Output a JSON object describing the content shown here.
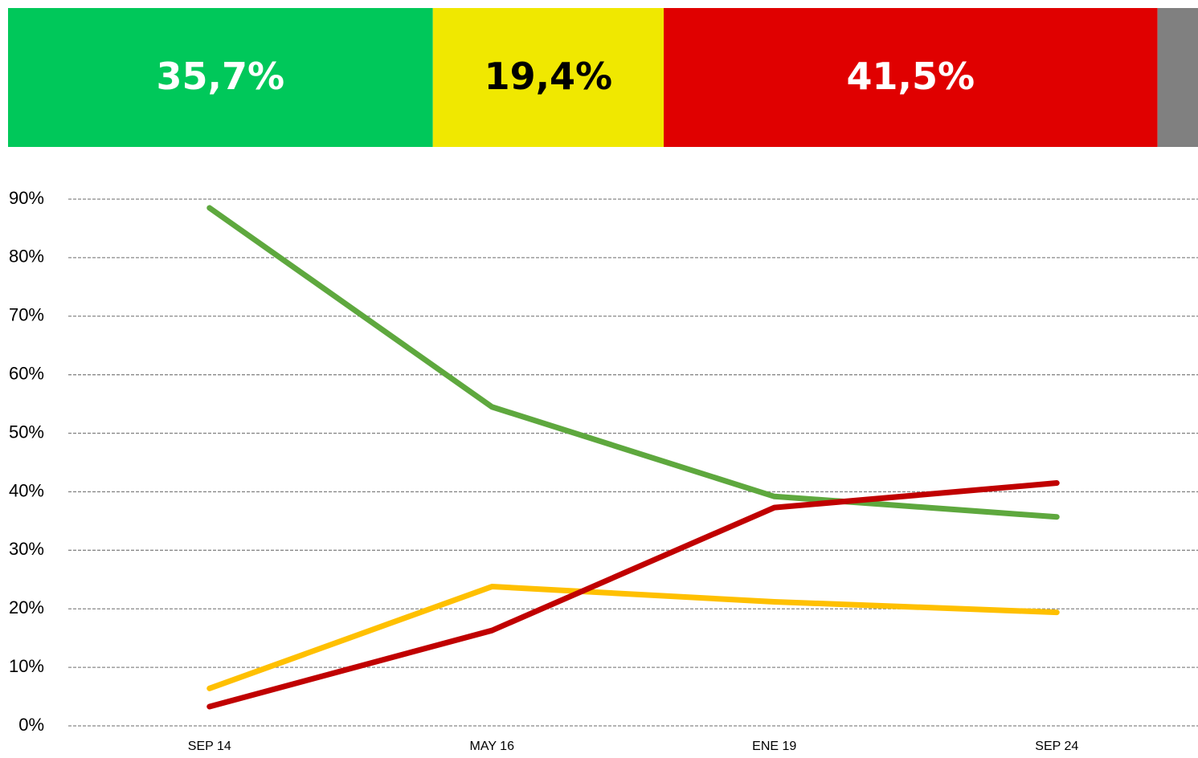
{
  "chart_data": [
    {
      "type": "stacked-bar",
      "series": [
        {
          "color": "#00c85a",
          "values": [
            35.7
          ],
          "value_labels": [
            "35,7%"
          ],
          "label_color": "#ffffff"
        },
        {
          "color": "#f0e800",
          "values": [
            19.4
          ],
          "value_labels": [
            "19,4%"
          ],
          "label_color": "#000000"
        },
        {
          "color": "#e00000",
          "values": [
            41.5
          ],
          "value_labels": [
            "41,5%"
          ],
          "label_color": "#ffffff"
        },
        {
          "color": "#808080",
          "values": [
            3.4
          ]
        }
      ],
      "xlim": [
        0,
        100
      ]
    },
    {
      "type": "line",
      "categories": [
        "SEP 14",
        "MAY 16",
        "ENE 19",
        "SEP 24"
      ],
      "series": [
        {
          "color": "#5ea83e",
          "values": [
            88.5,
            54.5,
            39.2,
            35.7
          ]
        },
        {
          "color": "#ffc000",
          "values": [
            6.4,
            23.8,
            21.2,
            19.4
          ]
        },
        {
          "color": "#c00000",
          "values": [
            3.3,
            16.3,
            37.3,
            41.5
          ]
        }
      ],
      "ylim": [
        0,
        90
      ],
      "yticks": [
        {
          "value": 0,
          "label": "0%"
        },
        {
          "value": 10,
          "label": "10%"
        },
        {
          "value": 20,
          "label": "20%"
        },
        {
          "value": 30,
          "label": "30%"
        },
        {
          "value": 40,
          "label": "40%"
        },
        {
          "value": 50,
          "label": "50%"
        },
        {
          "value": 60,
          "label": "60%"
        },
        {
          "value": 70,
          "label": "70%"
        },
        {
          "value": 80,
          "label": "80%"
        },
        {
          "value": 90,
          "label": "90%"
        }
      ],
      "grid": true
    }
  ]
}
